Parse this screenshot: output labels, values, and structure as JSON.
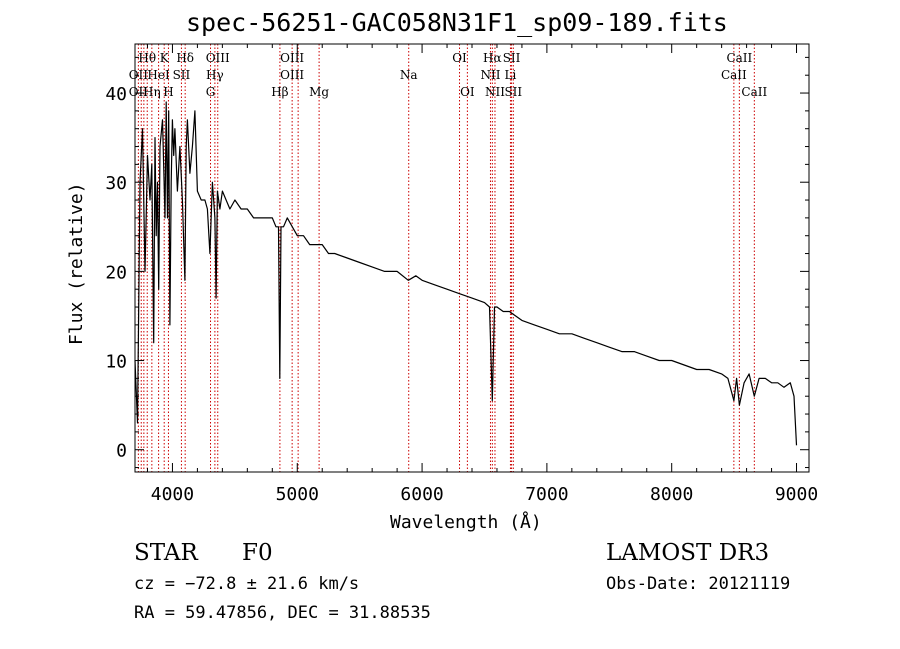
{
  "chart_data": {
    "type": "line",
    "title": "spec-56251-GAC058N31F1_sp09-189.fits",
    "xlabel": "Wavelength (Å)",
    "ylabel": "Flux (relative)",
    "xlim": [
      3700,
      9100
    ],
    "ylim": [
      -2.5,
      45.5
    ],
    "xticks": [
      4000,
      5000,
      6000,
      7000,
      8000,
      9000
    ],
    "yticks": [
      0,
      10,
      20,
      30,
      40
    ],
    "grid": false,
    "series": [
      {
        "name": "spectrum",
        "x": [
          3700,
          3720,
          3740,
          3760,
          3780,
          3800,
          3820,
          3835,
          3850,
          3860,
          3870,
          3880,
          3890,
          3900,
          3920,
          3940,
          3950,
          3960,
          3970,
          3980,
          3990,
          4000,
          4010,
          4020,
          4040,
          4060,
          4080,
          4100,
          4110,
          4120,
          4140,
          4160,
          4180,
          4200,
          4230,
          4260,
          4280,
          4300,
          4320,
          4340,
          4350,
          4360,
          4380,
          4400,
          4430,
          4460,
          4500,
          4550,
          4600,
          4650,
          4700,
          4750,
          4800,
          4830,
          4850,
          4860,
          4870,
          4890,
          4920,
          4960,
          5000,
          5050,
          5100,
          5150,
          5200,
          5250,
          5300,
          5400,
          5500,
          5600,
          5700,
          5800,
          5890,
          5950,
          6000,
          6100,
          6200,
          6300,
          6400,
          6500,
          6540,
          6563,
          6580,
          6600,
          6650,
          6700,
          6750,
          6800,
          6900,
          7000,
          7100,
          7200,
          7300,
          7400,
          7500,
          7600,
          7700,
          7800,
          7900,
          8000,
          8100,
          8200,
          8300,
          8400,
          8450,
          8498,
          8520,
          8542,
          8580,
          8620,
          8662,
          8700,
          8750,
          8800,
          8850,
          8900,
          8950,
          8980,
          9000
        ],
        "y": [
          10,
          3,
          30,
          36,
          20,
          33,
          28,
          32,
          12,
          35,
          24,
          30,
          18,
          34,
          37,
          26,
          39,
          26,
          38,
          14,
          30,
          37,
          33,
          36,
          29,
          34,
          28,
          19,
          34,
          37,
          31,
          34,
          38,
          29,
          28,
          28,
          27,
          22,
          30,
          26,
          17,
          29,
          27,
          29,
          28,
          27,
          28,
          27,
          27,
          26,
          26,
          26,
          26,
          25,
          25,
          8,
          25,
          25,
          26,
          25,
          24,
          24,
          23,
          23,
          23,
          22,
          22,
          21.5,
          21,
          20.5,
          20,
          20,
          19,
          19.5,
          19,
          18.5,
          18,
          17.5,
          17,
          16.5,
          16,
          5.5,
          16,
          16,
          15.5,
          15.5,
          15,
          14.5,
          14,
          13.5,
          13,
          13,
          12.5,
          12,
          11.5,
          11,
          11,
          10.5,
          10,
          10,
          9.5,
          9,
          9,
          8.5,
          8,
          5.5,
          8,
          5,
          7.5,
          8.5,
          6,
          8,
          8,
          7.5,
          7.5,
          7,
          7.5,
          6,
          0.5
        ]
      }
    ],
    "annotations": [
      {
        "label": "OII",
        "x": 3727,
        "row": 2
      },
      {
        "label": "Hθ",
        "x": 3798,
        "row": 1
      },
      {
        "label": "OII",
        "x": 3727,
        "row": 3
      },
      {
        "label": "Hη",
        "x": 3835,
        "row": 3
      },
      {
        "label": "HeI",
        "x": 3889,
        "row": 2
      },
      {
        "label": "K",
        "x": 3934,
        "row": 1
      },
      {
        "label": "H",
        "x": 3968,
        "row": 3
      },
      {
        "label": "SII",
        "x": 4072,
        "row": 2
      },
      {
        "label": "Hδ",
        "x": 4102,
        "row": 1
      },
      {
        "label": "OIII",
        "x": 4363,
        "row": 1
      },
      {
        "label": "Hγ",
        "x": 4340,
        "row": 2
      },
      {
        "label": "G",
        "x": 4305,
        "row": 3
      },
      {
        "label": "Hβ",
        "x": 4861,
        "row": 3
      },
      {
        "label": "OIII",
        "x": 4959,
        "row": 1
      },
      {
        "label": "OIII",
        "x": 4959,
        "row": 2
      },
      {
        "label": "Mg",
        "x": 5175,
        "row": 3
      },
      {
        "label": "Na",
        "x": 5893,
        "row": 2
      },
      {
        "label": "OI",
        "x": 6300,
        "row": 1
      },
      {
        "label": "OI",
        "x": 6363,
        "row": 3
      },
      {
        "label": "Hα",
        "x": 6563,
        "row": 1
      },
      {
        "label": "NII",
        "x": 6548,
        "row": 2
      },
      {
        "label": "NII",
        "x": 6584,
        "row": 3
      },
      {
        "label": "SII",
        "x": 6717,
        "row": 1
      },
      {
        "label": "Li",
        "x": 6708,
        "row": 2
      },
      {
        "label": "SII",
        "x": 6731,
        "row": 3
      },
      {
        "label": "CaII",
        "x": 8542,
        "row": 1
      },
      {
        "label": "CaII",
        "x": 8498,
        "row": 2
      },
      {
        "label": "CaII",
        "x": 8662,
        "row": 3
      }
    ],
    "line_markers_x": [
      3727,
      3750,
      3771,
      3798,
      3835,
      3889,
      3934,
      3968,
      4072,
      4102,
      4305,
      4340,
      4363,
      4861,
      4959,
      5007,
      5175,
      5893,
      6300,
      6363,
      6548,
      6563,
      6584,
      6708,
      6717,
      6731,
      8498,
      8542,
      8662
    ]
  },
  "info": {
    "left_line1_a": "STAR",
    "left_line1_b": "F0",
    "left_line2": "cz = −72.8 ± 21.6 km/s",
    "left_line3": "RA =  59.47856, DEC =  31.88535",
    "right_line1": "LAMOST DR3",
    "right_line2": "Obs-Date: 20121119"
  },
  "colors": {
    "axis": "#000000",
    "spectrum": "#000000",
    "marker": "#cc0000"
  }
}
